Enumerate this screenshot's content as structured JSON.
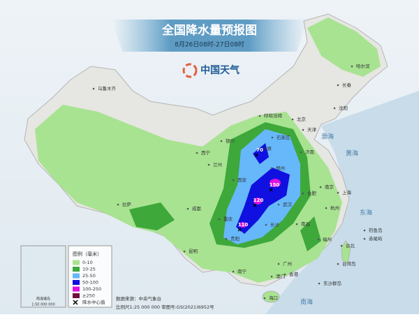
{
  "header": {
    "title": "全国降水量预报图",
    "subtitle": "8月26日08时-27日08时"
  },
  "logo": "中国天气",
  "legend": {
    "title": "图例（毫米）",
    "items": [
      {
        "label": "0-10",
        "color": "#a8e391"
      },
      {
        "label": "10-25",
        "color": "#3ea83a"
      },
      {
        "label": "25-50",
        "color": "#66b8fb"
      },
      {
        "label": "50-100",
        "color": "#1010e0"
      },
      {
        "label": "100-250",
        "color": "#e010e0"
      },
      {
        "label": "≥250",
        "color": "#70103a"
      }
    ],
    "center_label": "降水中心值"
  },
  "source": {
    "line1": "数据来源：中央气象台",
    "line2": "比例尺1:25 000 000  审图号:GS(2021)6952号"
  },
  "inset": {
    "label": "南海诸岛",
    "scale": "1:50 000 000"
  },
  "places": [
    "乌鲁木齐",
    "拉萨",
    "西宁",
    "兰州",
    "银川",
    "呼和浩特",
    "北京",
    "天津",
    "石家庄",
    "太原",
    "济南",
    "西安",
    "郑州",
    "合肥",
    "南京",
    "上海",
    "杭州",
    "武汉",
    "成都",
    "重庆",
    "长沙",
    "南昌",
    "贵阳",
    "昆明",
    "南宁",
    "广州",
    "香港",
    "澳门",
    "海口",
    "福州",
    "台北",
    "长春",
    "哈尔滨",
    "沈阳",
    "渤海",
    "黄海",
    "东海",
    "南海",
    "钓鱼岛",
    "赤尾屿",
    "台湾岛",
    "东沙群岛"
  ],
  "centers": [
    70,
    150,
    120,
    110
  ]
}
